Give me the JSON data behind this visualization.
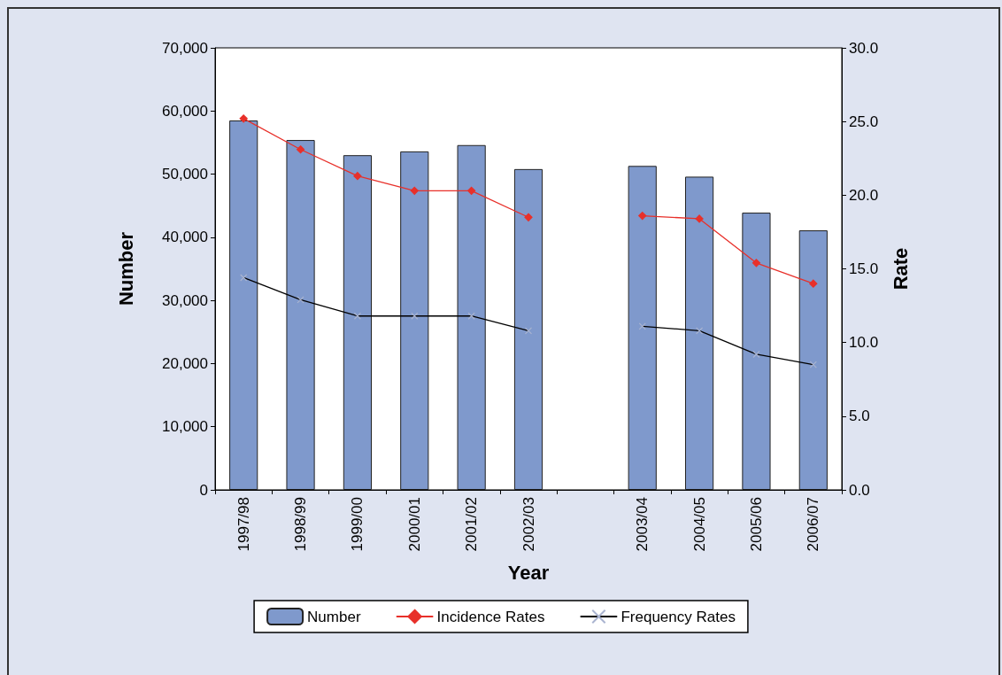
{
  "chart_data": {
    "type": "bar",
    "xlabel": "Year",
    "ylabel": "Number",
    "y2label": "Rate",
    "categories": [
      "1997/98",
      "1998/99",
      "1999/00",
      "2000/01",
      "2001/02",
      "2002/03",
      null,
      "2003/04",
      "2004/05",
      "2005/06",
      "2006/07"
    ],
    "series": [
      {
        "name": "Number",
        "type": "bar",
        "color": "#7f99cc",
        "values": [
          58500,
          55400,
          53000,
          53600,
          54600,
          50800,
          null,
          51300,
          49600,
          43900,
          41100
        ]
      },
      {
        "name": "Incidence Rates",
        "type": "line",
        "axis": "y2",
        "color": "#e8302a",
        "marker": "diamond",
        "values": [
          25.2,
          23.1,
          21.3,
          20.3,
          20.3,
          18.5,
          null,
          18.6,
          18.4,
          15.4,
          14.0
        ]
      },
      {
        "name": "Frequency Rates",
        "type": "line",
        "axis": "y2",
        "color": "#000000",
        "marker": "cross",
        "values": [
          14.4,
          12.9,
          11.8,
          11.8,
          11.8,
          10.8,
          null,
          11.1,
          10.8,
          9.2,
          8.5
        ]
      }
    ],
    "ylim": [
      0,
      70000
    ],
    "yticks": [
      0,
      {
        "value": 10000,
        "label": "10,000"
      },
      {
        "value": 20000,
        "label": "20,000"
      },
      {
        "value": 30000,
        "label": "30,000"
      },
      {
        "value": 40000,
        "label": "40,000"
      },
      {
        "value": 50000,
        "label": "50,000"
      },
      {
        "value": 60000,
        "label": "60,000"
      },
      {
        "value": 70000,
        "label": "70,000"
      }
    ],
    "y2lim": [
      0,
      30
    ],
    "y2ticks": [
      {
        "value": 0,
        "label": "0.0"
      },
      {
        "value": 5,
        "label": "5.0"
      },
      {
        "value": 10,
        "label": "10.0"
      },
      {
        "value": 15,
        "label": "15.0"
      },
      {
        "value": 20,
        "label": "20.0"
      },
      {
        "value": 25,
        "label": "25.0"
      },
      {
        "value": 30,
        "label": "30.0"
      }
    ],
    "legend": "bottom",
    "grid": false,
    "line_style": "solid"
  }
}
